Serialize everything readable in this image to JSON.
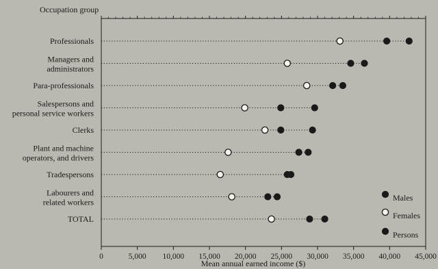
{
  "chart_data": {
    "type": "scatter",
    "group_axis_title": "Occupation group",
    "xlabel": "Mean annual earned income ($)",
    "xlim": [
      0,
      45000
    ],
    "x_ticks": [
      0,
      5000,
      10000,
      15000,
      20000,
      25000,
      30000,
      35000,
      40000,
      45000
    ],
    "x_tick_labels": [
      "0",
      "5,000",
      "10,000",
      "15,000",
      "20,000",
      "25,000",
      "30,000",
      "35,000",
      "40,000",
      "45,000"
    ],
    "grid": false,
    "legend_position": "bottom-right",
    "categories": [
      [
        "Professionals"
      ],
      [
        "Managers and",
        "administrators"
      ],
      [
        "Para-professionals"
      ],
      [
        "Salespersons and",
        "personal service workers"
      ],
      [
        "Clerks"
      ],
      [
        "Plant and machine",
        "operators, and drivers"
      ],
      [
        "Tradespersons"
      ],
      [
        "Labourers and",
        "related workers"
      ],
      [
        "TOTAL"
      ]
    ],
    "series": [
      {
        "name": "Males",
        "marker": "filled",
        "values": [
          42700,
          36500,
          33500,
          29600,
          29300,
          28700,
          26300,
          24400,
          31000
        ]
      },
      {
        "name": "Females",
        "marker": "open",
        "values": [
          33100,
          25800,
          28500,
          19900,
          22700,
          17600,
          16500,
          18100,
          23600
        ]
      },
      {
        "name": "Persons",
        "marker": "filled",
        "values": [
          39600,
          34600,
          32100,
          24900,
          24900,
          27400,
          25800,
          23100,
          28900
        ]
      }
    ]
  },
  "colors": {
    "background": "#b9b8b1",
    "ink": "#1a1a1a",
    "open_marker_fill": "#f4f3ee"
  }
}
